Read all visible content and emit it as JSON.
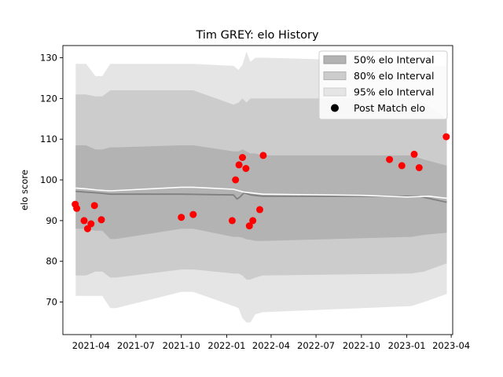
{
  "chart_data": {
    "type": "line",
    "title": "Tim GREY: elo History",
    "xlabel": "",
    "ylabel": "elo score",
    "ylim": [
      62,
      133
    ],
    "xlim": [
      "2021-02-03",
      "2023-04-04"
    ],
    "yticks": [
      70,
      80,
      90,
      100,
      110,
      120,
      130
    ],
    "xticks": [
      "2021-04",
      "2021-07",
      "2021-10",
      "2022-01",
      "2022-04",
      "2022-07",
      "2022-10",
      "2023-01",
      "2023-04"
    ],
    "grid": false,
    "legend": {
      "position": "top-right",
      "entries": [
        {
          "label": "50% elo Interval",
          "color": "#b3b3b3"
        },
        {
          "label": "80% elo Interval",
          "color": "#cccccc"
        },
        {
          "label": "95% elo Interval",
          "color": "#e5e5e5"
        },
        {
          "label": "Post Match elo",
          "color": "#000000"
        }
      ]
    },
    "bands": {
      "dates": [
        "2021-03-01",
        "2021-03-22",
        "2021-04-10",
        "2021-04-24",
        "2021-05-10",
        "2021-05-22",
        "2021-10-01",
        "2021-10-25",
        "2022-01-15",
        "2022-01-25",
        "2022-02-02",
        "2022-02-10",
        "2022-02-18",
        "2022-02-28",
        "2022-03-15",
        "2023-01-10",
        "2023-02-05",
        "2023-03-23"
      ],
      "series": [
        {
          "name": "95% elo Interval",
          "color": "#e5e5e5",
          "upper": [
            128.5,
            128.5,
            125.5,
            125.5,
            128.5,
            128.5,
            128.5,
            128.5,
            128.0,
            127.0,
            128.3,
            131.5,
            129.0,
            130.0,
            130.0,
            129.0,
            128.0,
            128.0
          ],
          "lower": [
            71.5,
            71.5,
            71.5,
            71.5,
            68.5,
            68.5,
            72.5,
            72.5,
            69.0,
            68.5,
            66.0,
            65.0,
            65.0,
            67.0,
            67.5,
            69.0,
            70.0,
            72.0
          ]
        },
        {
          "name": "80% elo Interval",
          "color": "#cccccc",
          "upper": [
            121.0,
            121.0,
            120.5,
            120.5,
            122.0,
            122.0,
            122.0,
            122.0,
            118.5,
            119.0,
            120.0,
            119.0,
            120.0,
            120.0,
            120.0,
            120.0,
            119.0,
            115.0
          ],
          "lower": [
            76.5,
            76.5,
            77.5,
            77.5,
            76.0,
            76.0,
            78.0,
            78.0,
            77.0,
            77.0,
            76.5,
            75.5,
            75.5,
            76.0,
            76.5,
            77.0,
            77.5,
            79.5
          ]
        },
        {
          "name": "50% elo Interval",
          "color": "#b3b3b3",
          "upper": [
            108.5,
            108.5,
            107.5,
            107.5,
            108.0,
            108.0,
            108.5,
            108.5,
            107.0,
            107.0,
            107.5,
            107.0,
            106.5,
            106.5,
            106.0,
            106.0,
            105.0,
            103.5
          ],
          "lower": [
            88.0,
            88.0,
            87.5,
            87.5,
            85.5,
            85.5,
            88.0,
            88.0,
            86.0,
            86.0,
            85.8,
            85.4,
            85.3,
            85.0,
            85.0,
            86.0,
            86.5,
            87.0
          ]
        }
      ]
    },
    "mean_line": {
      "color": "#808080",
      "dates": [
        "2021-03-01",
        "2021-03-22",
        "2021-04-15",
        "2021-05-10",
        "2021-10-01",
        "2022-01-15",
        "2022-01-22",
        "2022-01-28",
        "2022-02-05",
        "2022-02-20",
        "2022-03-15",
        "2023-01-25",
        "2023-03-23"
      ],
      "values": [
        97.2,
        97.0,
        96.8,
        96.5,
        96.5,
        96.3,
        95.3,
        95.8,
        96.8,
        96.3,
        96.0,
        96.0,
        94.5
      ]
    },
    "white_line": {
      "color": "#ffffff",
      "dates": [
        "2021-03-01",
        "2021-03-22",
        "2021-04-15",
        "2021-05-10",
        "2021-10-01",
        "2021-10-25",
        "2022-01-15",
        "2022-02-05",
        "2022-03-15",
        "2022-10-01",
        "2023-01-01",
        "2023-02-15",
        "2023-03-23"
      ],
      "values": [
        98.0,
        97.8,
        97.5,
        97.3,
        98.2,
        98.2,
        97.7,
        97.0,
        96.5,
        96.2,
        95.8,
        96.0,
        95.5
      ]
    },
    "points": {
      "name": "Post Match elo",
      "color": "#ff0000",
      "x": [
        "2021-02-28",
        "2021-03-03",
        "2021-03-18",
        "2021-03-25",
        "2021-04-01",
        "2021-04-08",
        "2021-04-22",
        "2021-10-01",
        "2021-10-25",
        "2022-01-12",
        "2022-01-19",
        "2022-01-26",
        "2022-02-02",
        "2022-02-09",
        "2022-02-16",
        "2022-02-23",
        "2022-03-09",
        "2022-03-16",
        "2022-11-27",
        "2022-12-22",
        "2023-01-16",
        "2023-01-26",
        "2023-03-22"
      ],
      "y": [
        94.0,
        93.0,
        90.0,
        88.0,
        89.2,
        93.7,
        90.2,
        90.8,
        91.5,
        90.0,
        100.0,
        103.7,
        105.5,
        102.8,
        88.7,
        90.0,
        92.7,
        106.0,
        105.0,
        103.5,
        106.3,
        103.0,
        110.6
      ]
    }
  }
}
